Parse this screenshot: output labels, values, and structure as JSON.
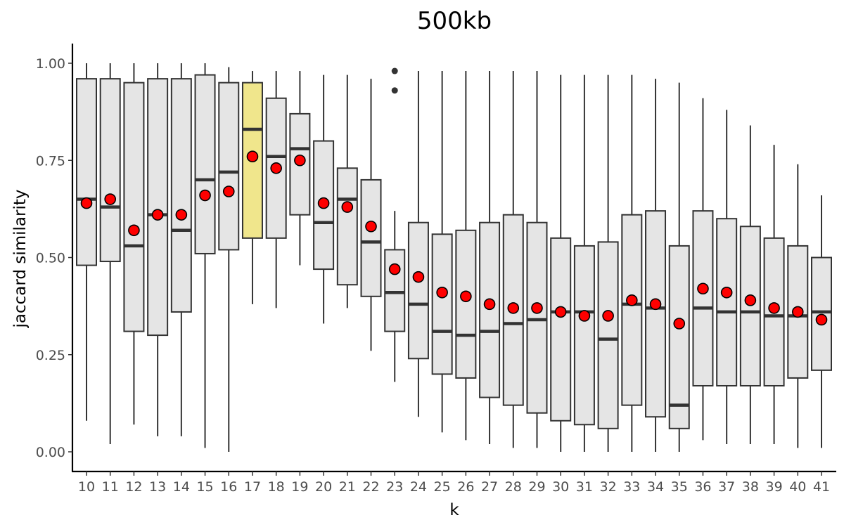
{
  "chart_data": {
    "type": "boxplot",
    "title": "500kb",
    "xlabel": "k",
    "ylabel": "jaccard similarity",
    "ylim": [
      -0.05,
      1.05
    ],
    "yticks": [
      "0.00",
      "0.25",
      "0.50",
      "0.75",
      "1.00"
    ],
    "grid": false,
    "highlight_category": "17",
    "colors": {
      "box_fill": "#e5e5e5",
      "highlight_fill": "#f0e68c",
      "box_stroke": "#333333",
      "mean_point": "#ff0000",
      "outlier": "#333333"
    },
    "categories": [
      "10",
      "11",
      "12",
      "13",
      "14",
      "15",
      "16",
      "17",
      "18",
      "19",
      "20",
      "21",
      "22",
      "23",
      "24",
      "25",
      "26",
      "27",
      "28",
      "29",
      "30",
      "31",
      "32",
      "33",
      "34",
      "35",
      "36",
      "37",
      "38",
      "39",
      "40",
      "41"
    ],
    "boxes": [
      {
        "k": "10",
        "whisker_low": 0.08,
        "q1": 0.48,
        "median": 0.65,
        "q3": 0.96,
        "whisker_high": 1.0,
        "mean": 0.64,
        "outliers": []
      },
      {
        "k": "11",
        "whisker_low": 0.02,
        "q1": 0.49,
        "median": 0.63,
        "q3": 0.96,
        "whisker_high": 1.0,
        "mean": 0.65,
        "outliers": []
      },
      {
        "k": "12",
        "whisker_low": 0.07,
        "q1": 0.31,
        "median": 0.53,
        "q3": 0.95,
        "whisker_high": 1.0,
        "mean": 0.57,
        "outliers": []
      },
      {
        "k": "13",
        "whisker_low": 0.04,
        "q1": 0.3,
        "median": 0.61,
        "q3": 0.96,
        "whisker_high": 1.0,
        "mean": 0.61,
        "outliers": []
      },
      {
        "k": "14",
        "whisker_low": 0.04,
        "q1": 0.36,
        "median": 0.57,
        "q3": 0.96,
        "whisker_high": 1.0,
        "mean": 0.61,
        "outliers": []
      },
      {
        "k": "15",
        "whisker_low": 0.01,
        "q1": 0.51,
        "median": 0.7,
        "q3": 0.97,
        "whisker_high": 1.0,
        "mean": 0.66,
        "outliers": []
      },
      {
        "k": "16",
        "whisker_low": 0.0,
        "q1": 0.52,
        "median": 0.72,
        "q3": 0.95,
        "whisker_high": 0.99,
        "mean": 0.67,
        "outliers": []
      },
      {
        "k": "17",
        "whisker_low": 0.38,
        "q1": 0.55,
        "median": 0.83,
        "q3": 0.95,
        "whisker_high": 0.98,
        "mean": 0.76,
        "outliers": []
      },
      {
        "k": "18",
        "whisker_low": 0.37,
        "q1": 0.55,
        "median": 0.76,
        "q3": 0.91,
        "whisker_high": 0.98,
        "mean": 0.73,
        "outliers": []
      },
      {
        "k": "19",
        "whisker_low": 0.48,
        "q1": 0.61,
        "median": 0.78,
        "q3": 0.87,
        "whisker_high": 0.98,
        "mean": 0.75,
        "outliers": []
      },
      {
        "k": "20",
        "whisker_low": 0.33,
        "q1": 0.47,
        "median": 0.59,
        "q3": 0.8,
        "whisker_high": 0.97,
        "mean": 0.64,
        "outliers": []
      },
      {
        "k": "21",
        "whisker_low": 0.37,
        "q1": 0.43,
        "median": 0.65,
        "q3": 0.73,
        "whisker_high": 0.97,
        "mean": 0.63,
        "outliers": []
      },
      {
        "k": "22",
        "whisker_low": 0.26,
        "q1": 0.4,
        "median": 0.54,
        "q3": 0.7,
        "whisker_high": 0.96,
        "mean": 0.58,
        "outliers": []
      },
      {
        "k": "23",
        "whisker_low": 0.18,
        "q1": 0.31,
        "median": 0.41,
        "q3": 0.52,
        "whisker_high": 0.62,
        "mean": 0.47,
        "outliers": [
          0.98,
          0.93
        ]
      },
      {
        "k": "24",
        "whisker_low": 0.09,
        "q1": 0.24,
        "median": 0.38,
        "q3": 0.59,
        "whisker_high": 0.98,
        "mean": 0.45,
        "outliers": []
      },
      {
        "k": "25",
        "whisker_low": 0.05,
        "q1": 0.2,
        "median": 0.31,
        "q3": 0.56,
        "whisker_high": 0.98,
        "mean": 0.41,
        "outliers": []
      },
      {
        "k": "26",
        "whisker_low": 0.03,
        "q1": 0.19,
        "median": 0.3,
        "q3": 0.57,
        "whisker_high": 0.98,
        "mean": 0.4,
        "outliers": []
      },
      {
        "k": "27",
        "whisker_low": 0.02,
        "q1": 0.14,
        "median": 0.31,
        "q3": 0.59,
        "whisker_high": 0.98,
        "mean": 0.38,
        "outliers": []
      },
      {
        "k": "28",
        "whisker_low": 0.01,
        "q1": 0.12,
        "median": 0.33,
        "q3": 0.61,
        "whisker_high": 0.98,
        "mean": 0.37,
        "outliers": []
      },
      {
        "k": "29",
        "whisker_low": 0.01,
        "q1": 0.1,
        "median": 0.34,
        "q3": 0.59,
        "whisker_high": 0.98,
        "mean": 0.37,
        "outliers": []
      },
      {
        "k": "30",
        "whisker_low": 0.0,
        "q1": 0.08,
        "median": 0.36,
        "q3": 0.55,
        "whisker_high": 0.97,
        "mean": 0.36,
        "outliers": []
      },
      {
        "k": "31",
        "whisker_low": 0.0,
        "q1": 0.07,
        "median": 0.36,
        "q3": 0.53,
        "whisker_high": 0.97,
        "mean": 0.35,
        "outliers": []
      },
      {
        "k": "32",
        "whisker_low": 0.0,
        "q1": 0.06,
        "median": 0.29,
        "q3": 0.54,
        "whisker_high": 0.97,
        "mean": 0.35,
        "outliers": []
      },
      {
        "k": "33",
        "whisker_low": 0.0,
        "q1": 0.12,
        "median": 0.38,
        "q3": 0.61,
        "whisker_high": 0.97,
        "mean": 0.39,
        "outliers": []
      },
      {
        "k": "34",
        "whisker_low": 0.0,
        "q1": 0.09,
        "median": 0.37,
        "q3": 0.62,
        "whisker_high": 0.96,
        "mean": 0.38,
        "outliers": []
      },
      {
        "k": "35",
        "whisker_low": 0.0,
        "q1": 0.06,
        "median": 0.12,
        "q3": 0.53,
        "whisker_high": 0.95,
        "mean": 0.33,
        "outliers": []
      },
      {
        "k": "36",
        "whisker_low": 0.03,
        "q1": 0.17,
        "median": 0.37,
        "q3": 0.62,
        "whisker_high": 0.91,
        "mean": 0.42,
        "outliers": []
      },
      {
        "k": "37",
        "whisker_low": 0.02,
        "q1": 0.17,
        "median": 0.36,
        "q3": 0.6,
        "whisker_high": 0.88,
        "mean": 0.41,
        "outliers": []
      },
      {
        "k": "38",
        "whisker_low": 0.02,
        "q1": 0.17,
        "median": 0.36,
        "q3": 0.58,
        "whisker_high": 0.84,
        "mean": 0.39,
        "outliers": []
      },
      {
        "k": "39",
        "whisker_low": 0.02,
        "q1": 0.17,
        "median": 0.35,
        "q3": 0.55,
        "whisker_high": 0.79,
        "mean": 0.37,
        "outliers": []
      },
      {
        "k": "40",
        "whisker_low": 0.01,
        "q1": 0.19,
        "median": 0.35,
        "q3": 0.53,
        "whisker_high": 0.74,
        "mean": 0.36,
        "outliers": []
      },
      {
        "k": "41",
        "whisker_low": 0.01,
        "q1": 0.21,
        "median": 0.36,
        "q3": 0.5,
        "whisker_high": 0.66,
        "mean": 0.34,
        "outliers": []
      }
    ]
  }
}
